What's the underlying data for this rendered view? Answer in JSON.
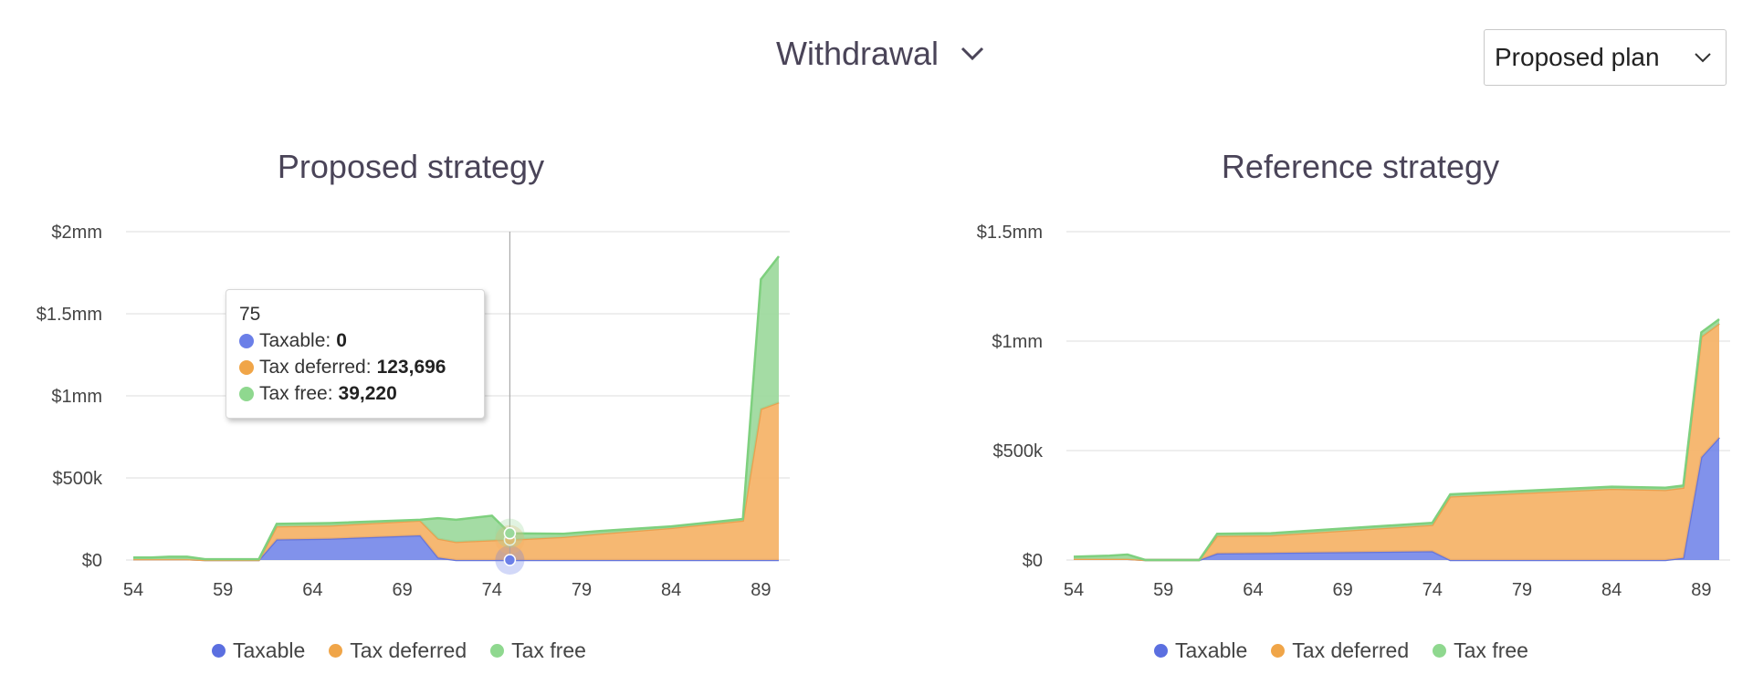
{
  "header": {
    "view_label": "Withdrawal",
    "plan_select_value": "Proposed plan"
  },
  "colors": {
    "taxable": "#6b7fe8",
    "tax_deferred": "#f5b063",
    "tax_free": "#9ad89a",
    "taxable_line": "#6475dc",
    "tax_deferred_line": "#eba04f",
    "tax_free_line": "#7ed07e"
  },
  "legend": {
    "taxable": "Taxable",
    "tax_deferred": "Tax deferred",
    "tax_free": "Tax free"
  },
  "tooltip": {
    "year": "75",
    "taxable_label": "Taxable:",
    "taxable_value": "0",
    "tax_deferred_label": "Tax deferred:",
    "tax_deferred_value": "123,696",
    "tax_free_label": "Tax free:",
    "tax_free_value": "39,220"
  },
  "chart_data": [
    {
      "type": "area",
      "stacked": true,
      "title": "Proposed strategy",
      "x_ticks": [
        "54",
        "59",
        "64",
        "69",
        "74",
        "79",
        "84",
        "89"
      ],
      "y_ticks": [
        "$0",
        "$500k",
        "$1mm",
        "$1.5mm",
        "$2mm"
      ],
      "xlim": [
        54,
        90.5
      ],
      "ylim": [
        0,
        2000000
      ],
      "highlight_x": 75,
      "series": [
        {
          "name": "Taxable",
          "points": [
            [
              54,
              5000
            ],
            [
              57,
              5000
            ],
            [
              58,
              0
            ],
            [
              61,
              0
            ],
            [
              62,
              125000
            ],
            [
              65,
              130000
            ],
            [
              70,
              150000
            ],
            [
              71,
              15000
            ],
            [
              72,
              0
            ],
            [
              90,
              0
            ]
          ]
        },
        {
          "name": "Tax deferred",
          "points": [
            [
              54,
              0
            ],
            [
              57,
              0
            ],
            [
              58,
              0
            ],
            [
              61,
              0
            ],
            [
              62,
              80000
            ],
            [
              65,
              80000
            ],
            [
              70,
              90000
            ],
            [
              71,
              115000
            ],
            [
              72,
              110000
            ],
            [
              74,
              120000
            ],
            [
              75,
              123696
            ],
            [
              78,
              140000
            ],
            [
              80,
              160000
            ],
            [
              84,
              195000
            ],
            [
              88,
              240000
            ],
            [
              89,
              920000
            ],
            [
              90,
              960000
            ]
          ]
        },
        {
          "name": "Tax free",
          "points": [
            [
              54,
              10000
            ],
            [
              55,
              10000
            ],
            [
              56,
              15000
            ],
            [
              57,
              15000
            ],
            [
              58,
              5000
            ],
            [
              61,
              5000
            ],
            [
              62,
              15000
            ],
            [
              65,
              15000
            ],
            [
              70,
              5000
            ],
            [
              71,
              125000
            ],
            [
              72,
              135000
            ],
            [
              74,
              150000
            ],
            [
              75,
              39220
            ],
            [
              78,
              20000
            ],
            [
              84,
              10000
            ],
            [
              88,
              10000
            ],
            [
              89,
              790000
            ],
            [
              90,
              890000
            ]
          ]
        }
      ]
    },
    {
      "type": "area",
      "stacked": true,
      "title": "Reference strategy",
      "x_ticks": [
        "54",
        "59",
        "64",
        "69",
        "74",
        "79",
        "84",
        "89"
      ],
      "y_ticks": [
        "$0",
        "$500k",
        "$1mm",
        "$1.5mm"
      ],
      "xlim": [
        54,
        90.5
      ],
      "ylim": [
        0,
        1500000
      ],
      "series": [
        {
          "name": "Taxable",
          "points": [
            [
              54,
              5000
            ],
            [
              57,
              5000
            ],
            [
              58,
              0
            ],
            [
              61,
              0
            ],
            [
              62,
              30000
            ],
            [
              74,
              40000
            ],
            [
              75,
              0
            ],
            [
              87,
              0
            ],
            [
              88,
              10000
            ],
            [
              89,
              470000
            ],
            [
              90,
              560000
            ]
          ]
        },
        {
          "name": "Tax deferred",
          "points": [
            [
              54,
              0
            ],
            [
              57,
              0
            ],
            [
              58,
              0
            ],
            [
              61,
              0
            ],
            [
              62,
              80000
            ],
            [
              65,
              80000
            ],
            [
              74,
              120000
            ],
            [
              75,
              290000
            ],
            [
              84,
              325000
            ],
            [
              87,
              320000
            ],
            [
              88,
              320000
            ],
            [
              89,
              550000
            ],
            [
              90,
              520000
            ]
          ]
        },
        {
          "name": "Tax free",
          "points": [
            [
              54,
              10000
            ],
            [
              56,
              15000
            ],
            [
              57,
              20000
            ],
            [
              58,
              0
            ],
            [
              61,
              0
            ],
            [
              62,
              10000
            ],
            [
              74,
              10000
            ],
            [
              75,
              10000
            ],
            [
              88,
              10000
            ],
            [
              89,
              20000
            ],
            [
              90,
              20000
            ]
          ]
        }
      ]
    }
  ]
}
